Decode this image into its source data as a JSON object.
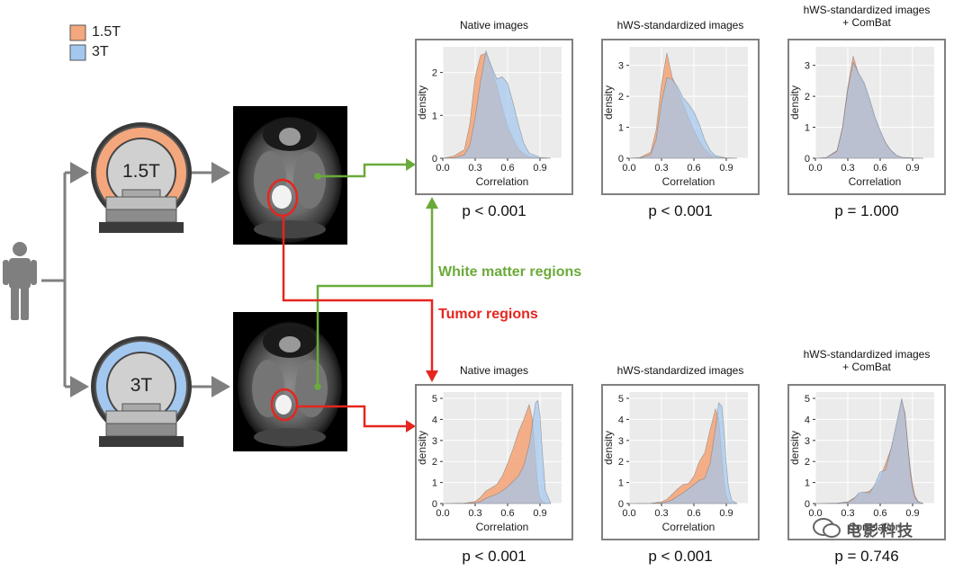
{
  "legend": {
    "items": [
      {
        "label": "1.5T",
        "color": "#f4a77c"
      },
      {
        "label": "3T",
        "color": "#a3c8f0"
      }
    ]
  },
  "scanners": [
    {
      "label": "1.5T",
      "ring_color": "#f4a77c"
    },
    {
      "label": "3T",
      "ring_color": "#a3c8f0"
    }
  ],
  "regions": {
    "white_matter": {
      "label": "White matter regions",
      "color": "#6aaa3a"
    },
    "tumor": {
      "label": "Tumor regions",
      "color": "#e5261f"
    }
  },
  "watermark": "电影科技",
  "chart_data": [
    {
      "type": "area",
      "row": "white matter",
      "title_line1": "Native images",
      "title_line2": "",
      "xlabel": "Correlation",
      "ylabel": "density",
      "xticks": [
        "0.0",
        "0.3",
        "0.6",
        "0.9"
      ],
      "yticks": [
        "0",
        "1",
        "2"
      ],
      "xlim": [
        0,
        1.1
      ],
      "ylim": [
        0,
        2.6
      ],
      "p_value": "p < 0.001",
      "x": [
        0.0,
        0.1,
        0.2,
        0.25,
        0.3,
        0.35,
        0.4,
        0.45,
        0.5,
        0.55,
        0.6,
        0.65,
        0.7,
        0.75,
        0.8,
        0.9,
        1.0
      ],
      "series": [
        {
          "name": "1.5T",
          "values": [
            0,
            0.05,
            0.2,
            0.8,
            1.9,
            2.4,
            2.45,
            2.1,
            1.7,
            1.2,
            0.75,
            0.45,
            0.22,
            0.1,
            0.04,
            0.01,
            0
          ]
        },
        {
          "name": "3T",
          "values": [
            0,
            0.01,
            0.08,
            0.3,
            0.95,
            1.8,
            2.5,
            2.15,
            1.85,
            1.9,
            1.75,
            1.3,
            0.8,
            0.35,
            0.12,
            0.02,
            0
          ]
        }
      ]
    },
    {
      "type": "area",
      "row": "white matter",
      "title_line1": "hWS-standardized images",
      "title_line2": "",
      "xlabel": "Correlation",
      "ylabel": "density",
      "xticks": [
        "0.0",
        "0.3",
        "0.6",
        "0.9"
      ],
      "yticks": [
        "0",
        "1",
        "2",
        "3"
      ],
      "xlim": [
        0,
        1.1
      ],
      "ylim": [
        0,
        3.6
      ],
      "p_value": "p < 0.001",
      "x": [
        0.0,
        0.1,
        0.2,
        0.25,
        0.3,
        0.35,
        0.4,
        0.45,
        0.5,
        0.55,
        0.6,
        0.65,
        0.7,
        0.75,
        0.8,
        0.9,
        1.0
      ],
      "series": [
        {
          "name": "1.5T",
          "values": [
            0,
            0.02,
            0.2,
            0.9,
            2.4,
            3.4,
            2.6,
            2.2,
            1.75,
            1.3,
            0.9,
            0.55,
            0.3,
            0.12,
            0.04,
            0.01,
            0
          ]
        },
        {
          "name": "3T",
          "values": [
            0,
            0.01,
            0.12,
            0.6,
            1.8,
            2.6,
            2.55,
            2.3,
            1.95,
            1.75,
            1.5,
            1.1,
            0.6,
            0.25,
            0.08,
            0.01,
            0
          ]
        }
      ]
    },
    {
      "type": "area",
      "row": "white matter",
      "title_line1": "hWS-standardized images",
      "title_line2": "+ ComBat",
      "xlabel": "Correlation",
      "ylabel": "density",
      "xticks": [
        "0.0",
        "0.3",
        "0.6",
        "0.9"
      ],
      "yticks": [
        "0",
        "1",
        "2",
        "3"
      ],
      "xlim": [
        0,
        1.1
      ],
      "ylim": [
        0,
        3.6
      ],
      "p_value": "p = 1.000",
      "x": [
        0.0,
        0.1,
        0.2,
        0.25,
        0.3,
        0.35,
        0.4,
        0.45,
        0.5,
        0.55,
        0.6,
        0.65,
        0.7,
        0.75,
        0.8,
        0.9,
        1.0
      ],
      "series": [
        {
          "name": "1.5T",
          "values": [
            0,
            0.02,
            0.25,
            1.0,
            2.3,
            3.3,
            2.7,
            2.4,
            1.85,
            1.3,
            0.85,
            0.5,
            0.25,
            0.1,
            0.03,
            0.01,
            0
          ]
        },
        {
          "name": "3T",
          "values": [
            0,
            0.02,
            0.22,
            0.95,
            2.2,
            3.1,
            2.75,
            2.45,
            1.95,
            1.35,
            0.9,
            0.5,
            0.25,
            0.1,
            0.03,
            0.01,
            0
          ]
        }
      ]
    },
    {
      "type": "area",
      "row": "tumor",
      "title_line1": "Native images",
      "title_line2": "",
      "xlabel": "Correlation",
      "ylabel": "density",
      "xticks": [
        "0.0",
        "0.3",
        "0.6",
        "0.9"
      ],
      "yticks": [
        "0",
        "1",
        "2",
        "3",
        "4",
        "5"
      ],
      "xlim": [
        0,
        1.1
      ],
      "ylim": [
        0,
        5.3
      ],
      "p_value": "p < 0.001",
      "x": [
        0.0,
        0.2,
        0.3,
        0.35,
        0.4,
        0.45,
        0.5,
        0.55,
        0.6,
        0.65,
        0.7,
        0.75,
        0.8,
        0.83,
        0.86,
        0.88,
        0.9,
        0.92,
        0.95,
        1.0
      ],
      "series": [
        {
          "name": "1.5T",
          "values": [
            0,
            0.02,
            0.1,
            0.3,
            0.6,
            0.75,
            0.9,
            1.3,
            1.9,
            2.6,
            3.4,
            4.0,
            4.7,
            4.0,
            2.0,
            0.8,
            0.3,
            0.1,
            0.02,
            0
          ]
        },
        {
          "name": "3T",
          "values": [
            0,
            0.01,
            0.04,
            0.1,
            0.25,
            0.35,
            0.45,
            0.6,
            0.8,
            1.05,
            1.3,
            1.8,
            2.8,
            3.8,
            4.8,
            4.9,
            4.2,
            2.6,
            0.6,
            0
          ]
        }
      ]
    },
    {
      "type": "area",
      "row": "tumor",
      "title_line1": "hWS-standardized images",
      "title_line2": "",
      "xlabel": "Correlation",
      "ylabel": "density",
      "xticks": [
        "0.0",
        "0.3",
        "0.6",
        "0.9"
      ],
      "yticks": [
        "0",
        "1",
        "2",
        "3",
        "4",
        "5"
      ],
      "xlim": [
        0,
        1.1
      ],
      "ylim": [
        0,
        5.3
      ],
      "p_value": "p < 0.001",
      "x": [
        0.0,
        0.2,
        0.3,
        0.35,
        0.4,
        0.45,
        0.5,
        0.55,
        0.6,
        0.65,
        0.7,
        0.75,
        0.8,
        0.83,
        0.86,
        0.88,
        0.9,
        0.92,
        0.95,
        1.0
      ],
      "series": [
        {
          "name": "1.5T",
          "values": [
            0,
            0.01,
            0.08,
            0.2,
            0.45,
            0.7,
            0.9,
            0.95,
            1.3,
            2.0,
            2.4,
            3.5,
            4.5,
            4.0,
            2.2,
            1.0,
            0.35,
            0.12,
            0.02,
            0
          ]
        },
        {
          "name": "3T",
          "values": [
            0,
            0.01,
            0.03,
            0.08,
            0.18,
            0.35,
            0.5,
            0.7,
            0.9,
            1.1,
            1.2,
            1.9,
            3.6,
            4.8,
            4.6,
            3.4,
            1.9,
            0.8,
            0.15,
            0
          ]
        }
      ]
    },
    {
      "type": "area",
      "row": "tumor",
      "title_line1": "hWS-standardized images",
      "title_line2": "+ ComBat",
      "xlabel": "Correlation",
      "ylabel": "density",
      "xticks": [
        "0.0",
        "0.3",
        "0.6",
        "0.9"
      ],
      "yticks": [
        "0",
        "1",
        "2",
        "3",
        "4",
        "5"
      ],
      "xlim": [
        0,
        1.1
      ],
      "ylim": [
        0,
        5.3
      ],
      "p_value": "p = 0.746",
      "x": [
        0.0,
        0.2,
        0.3,
        0.35,
        0.4,
        0.45,
        0.5,
        0.55,
        0.6,
        0.65,
        0.7,
        0.75,
        0.8,
        0.83,
        0.86,
        0.88,
        0.9,
        0.92,
        0.95,
        1.0
      ],
      "series": [
        {
          "name": "1.5T",
          "values": [
            0,
            0.02,
            0.08,
            0.25,
            0.4,
            0.5,
            0.6,
            0.8,
            1.2,
            1.9,
            2.6,
            3.6,
            4.9,
            4.3,
            2.6,
            1.6,
            0.9,
            0.4,
            0.1,
            0
          ]
        },
        {
          "name": "3T",
          "values": [
            0,
            0.02,
            0.06,
            0.2,
            0.5,
            0.55,
            0.5,
            0.9,
            1.5,
            1.6,
            2.6,
            3.8,
            5.0,
            4.2,
            2.5,
            1.4,
            0.7,
            0.3,
            0.08,
            0
          ]
        }
      ]
    }
  ]
}
